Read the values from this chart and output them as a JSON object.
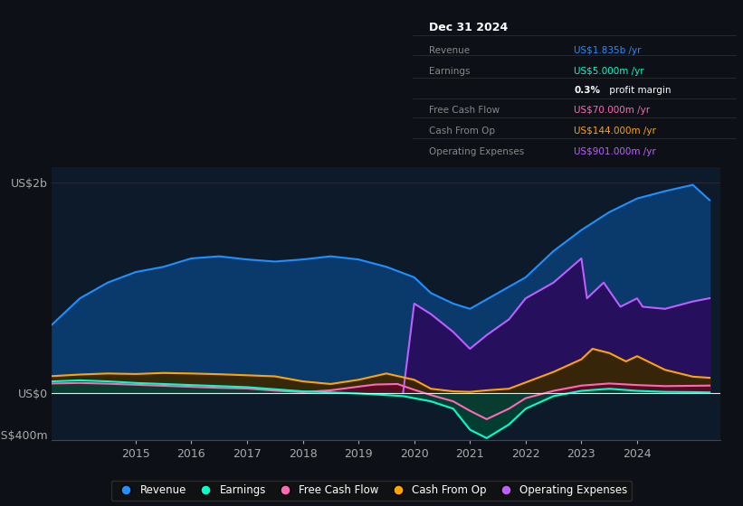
{
  "bg_color": "#0d1117",
  "plot_bg_color": "#0d1a2a",
  "ylim": [
    -450,
    2150
  ],
  "yticks": [
    -400,
    0,
    2000
  ],
  "ytick_labels": [
    "-US$400m",
    "US$0",
    "US$2b"
  ],
  "xmin": 2013.5,
  "xmax": 2025.5,
  "xticks": [
    2015,
    2016,
    2017,
    2018,
    2019,
    2020,
    2021,
    2022,
    2023,
    2024
  ],
  "revenue_color": "#1e90ff",
  "revenue_fill": "#0a3a6b",
  "earnings_color": "#00ffcc",
  "earnings_fill": "#004433",
  "fcf_color": "#ff69b4",
  "fcf_fill": "#5a0a25",
  "cashop_color": "#ffa500",
  "cashop_fill": "#3a2800",
  "opex_color": "#bf5fff",
  "opex_fill": "#2a0a5a",
  "legend_entries": [
    {
      "label": "Revenue",
      "color": "#1e90ff"
    },
    {
      "label": "Earnings",
      "color": "#00ffcc"
    },
    {
      "label": "Free Cash Flow",
      "color": "#ff69b4"
    },
    {
      "label": "Cash From Op",
      "color": "#ffa500"
    },
    {
      "label": "Operating Expenses",
      "color": "#bf5fff"
    }
  ],
  "info_title": "Dec 31 2024",
  "info_rows": [
    {
      "label": "Revenue",
      "value": "US$1.835b /yr",
      "color": "#1e90ff"
    },
    {
      "label": "Earnings",
      "value": "US$5.000m /yr",
      "color": "#00ffcc"
    },
    {
      "label": "",
      "value": "0.3% profit margin",
      "color": "#ffffff"
    },
    {
      "label": "Free Cash Flow",
      "value": "US$70.000m /yr",
      "color": "#ff69b4"
    },
    {
      "label": "Cash From Op",
      "value": "US$144.000m /yr",
      "color": "#ffa500"
    },
    {
      "label": "Operating Expenses",
      "value": "US$901.000m /yr",
      "color": "#bf5fff"
    }
  ]
}
